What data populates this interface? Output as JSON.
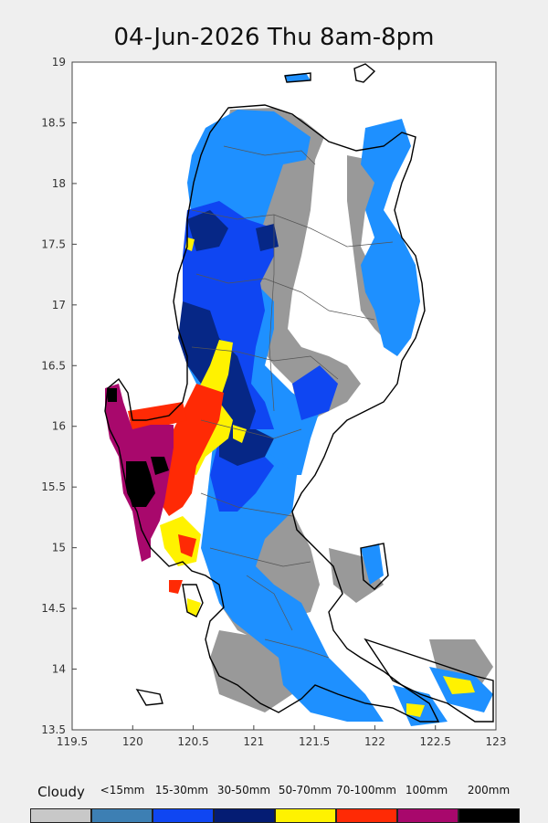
{
  "title": "04-Jun-2026 Thu 8am-8pm",
  "axes": {
    "x_ticks": [
      "119.5",
      "120",
      "120.5",
      "121",
      "121.5",
      "122",
      "122.5",
      "123"
    ],
    "y_ticks": [
      "19",
      "18.5",
      "18",
      "17.5",
      "17",
      "16.5",
      "16",
      "15.5",
      "15",
      "14.5",
      "14",
      "13.5"
    ],
    "x_range": [
      119.5,
      123
    ],
    "y_range": [
      13.5,
      19
    ]
  },
  "legend": {
    "items": [
      {
        "label": "Cloudy",
        "color": "#c8c8c8"
      },
      {
        "label": "<15mm",
        "color": "#3d7fb3"
      },
      {
        "label": "15-30mm",
        "color": "#0f46f2"
      },
      {
        "label": "30-50mm",
        "color": "#041c73"
      },
      {
        "label": "50-70mm",
        "color": "#fff200"
      },
      {
        "label": "70-100mm",
        "color": "#ff2a05"
      },
      {
        "label": "100mm",
        "color": "#a8086c"
      },
      {
        "label": "200mm",
        "color": "#000000"
      }
    ]
  },
  "colors": {
    "cloudy_map": "#999999",
    "light_blue": "#1e90ff",
    "blue": "#0f46f2",
    "dark_blue": "#062786",
    "yellow": "#fff200",
    "red": "#ff2a05",
    "magenta": "#a8086c",
    "black": "#000000"
  }
}
